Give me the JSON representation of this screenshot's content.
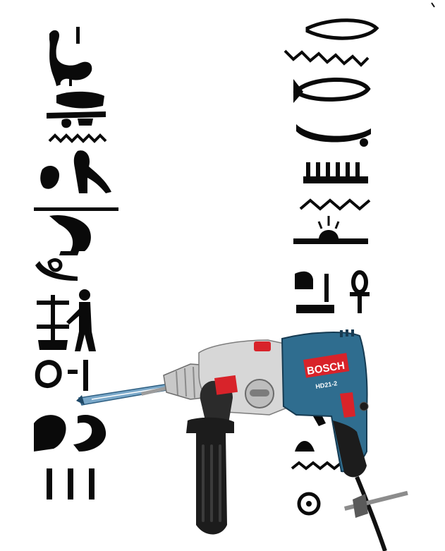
{
  "image": {
    "background": "#ffffff",
    "glyph_color": "#0a0a0a"
  },
  "hieroglyph_columns": {
    "left": {
      "glyphs": [
        "ostrich-bird",
        "boat-with-bread",
        "water-ripple",
        "arm-and-vulture",
        "reed-and-seated-figure",
        "bound-figure",
        "standing-man",
        "ankh-like-sign",
        "crouching-figures",
        "three-strokes"
      ]
    },
    "right": {
      "glyphs": [
        "boat-mouth",
        "water-ripple",
        "fish",
        "dish-basket",
        "comb",
        "water-ripple",
        "rising-sun",
        "seat",
        "ankh",
        "pedestal",
        "cobra",
        "mountain",
        "bread",
        "water-ripple",
        "sun-disk"
      ]
    }
  },
  "drill": {
    "brand": "BOSCH",
    "model": "HD21-2",
    "body_color": "#2f6d8f",
    "accent_color": "#d8232a",
    "handle_color": "#1c1c1c",
    "chuck_color": "#c8c8c8"
  }
}
